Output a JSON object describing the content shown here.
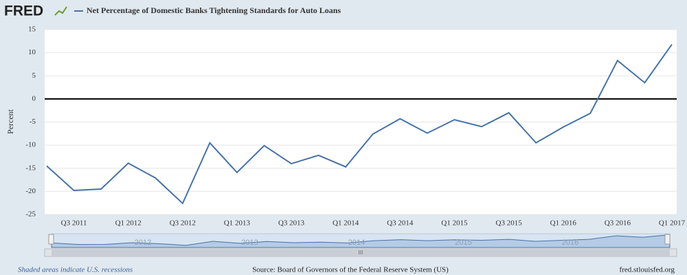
{
  "chart_data": {
    "type": "line",
    "logo": "FRED",
    "title": "Net Percentage of Domestic Banks Tightening Standards for Auto Loans",
    "y_label": "Percent",
    "categories": [
      null,
      "Q3 2011",
      null,
      "Q1 2012",
      null,
      "Q3 2012",
      null,
      "Q1 2013",
      null,
      "Q3 2013",
      null,
      "Q1 2014",
      null,
      "Q3 2014",
      null,
      "Q1 2015",
      null,
      "Q3 2015",
      null,
      "Q1 2016",
      null,
      "Q3 2016",
      null,
      "Q1 2017"
    ],
    "series": [
      {
        "name": "Net Percentage of Domestic Banks Tightening Standards for Auto Loans",
        "color": "#4572a7",
        "values": [
          -14.5,
          -19.8,
          -19.5,
          -13.9,
          -17.1,
          -22.6,
          -9.5,
          -15.9,
          -10.1,
          -14.0,
          -12.2,
          -14.7,
          -7.6,
          -4.3,
          -7.4,
          -4.5,
          -6.0,
          -3.0,
          -9.5,
          -6.1,
          -3.1,
          8.3,
          3.5,
          11.8
        ]
      }
    ],
    "ylim": [
      -25,
      15
    ],
    "yticks": [
      15,
      10,
      5,
      0,
      -5,
      -10,
      -15,
      -20,
      -25
    ],
    "grid": true,
    "zero_line": true,
    "navigator_labels": [
      "2012",
      "2013",
      "2014",
      "2015",
      "2016"
    ],
    "scrollbar_label": "III",
    "recession_note": "Shaded areas indicate U.S. recessions",
    "source": "Source: Board of Governors of the Federal Reserve System (US)",
    "site": "fred.stlouisfed.org"
  }
}
